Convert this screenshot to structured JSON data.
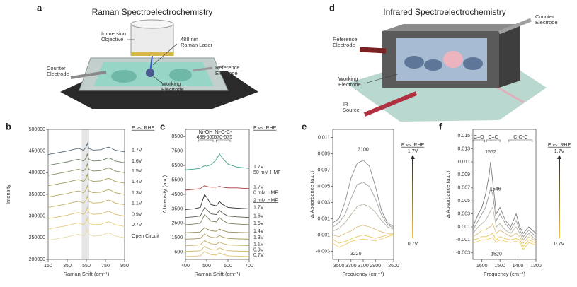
{
  "diagrams": [
    {
      "panel": "a",
      "title": "Raman Spectroelectrochemistry",
      "labels": [
        [
          "Immersion",
          "Objective"
        ],
        [
          "488 nm",
          "Raman Laser"
        ],
        [
          "Counter",
          "Electrode"
        ],
        [
          "Reference",
          "Electrode"
        ],
        [
          "Working",
          "Electrode"
        ]
      ]
    },
    {
      "panel": "d",
      "title": "Infrared Spectroelectrochemistry",
      "labels": [
        [
          "Reference",
          "Electrode"
        ],
        [
          "Counter",
          "Electrode"
        ],
        [
          "Working",
          "Electrode"
        ],
        [
          "IR",
          "Source"
        ]
      ]
    }
  ],
  "chart_data": [
    {
      "type": "line",
      "panel": "b",
      "xlabel": "Raman Shift (cm⁻¹)",
      "ylabel": "Intensity",
      "xlim": [
        150,
        950
      ],
      "ylim": [
        200000,
        500000
      ],
      "xticks": [
        150,
        350,
        550,
        750,
        950
      ],
      "yticks": [
        200000,
        250000,
        300000,
        350000,
        400000,
        450000,
        500000
      ],
      "highlight": [
        500,
        580
      ],
      "legend_title": "E vs. RHE",
      "x": [
        150,
        250,
        350,
        420,
        470,
        520,
        545,
        560,
        575,
        620,
        700,
        780,
        810,
        850,
        950
      ],
      "series": [
        {
          "name": "1.7V",
          "color": "#5a6a7a",
          "values": [
            442000,
            446000,
            450000,
            454000,
            456000,
            452000,
            458000,
            468000,
            456000,
            452000,
            453000,
            459000,
            457000,
            452000,
            448000
          ]
        },
        {
          "name": "1.6V",
          "color": "#6f7f6a",
          "values": [
            417000,
            421000,
            425000,
            429000,
            431000,
            427000,
            433000,
            443000,
            431000,
            427000,
            428000,
            434000,
            432000,
            427000,
            423000
          ]
        },
        {
          "name": "1.5V",
          "color": "#8a8f60",
          "values": [
            394000,
            398000,
            402000,
            406000,
            408000,
            404000,
            410000,
            420000,
            408000,
            404000,
            405000,
            411000,
            409000,
            404000,
            400000
          ]
        },
        {
          "name": "1.4V",
          "color": "#9f9a5a",
          "values": [
            370000,
            374000,
            378000,
            382000,
            384000,
            380000,
            386000,
            396000,
            384000,
            380000,
            381000,
            387000,
            385000,
            380000,
            376000
          ]
        },
        {
          "name": "1.3V",
          "color": "#b5a860",
          "values": [
            344000,
            348000,
            352000,
            356000,
            358000,
            354000,
            360000,
            370000,
            358000,
            354000,
            355000,
            361000,
            359000,
            354000,
            350000
          ]
        },
        {
          "name": "1.1V",
          "color": "#c8b46a",
          "values": [
            320000,
            324000,
            328000,
            332000,
            334000,
            330000,
            336000,
            346000,
            334000,
            330000,
            331000,
            337000,
            335000,
            330000,
            326000
          ]
        },
        {
          "name": "0.9V",
          "color": "#d8c070",
          "values": [
            294000,
            298000,
            302000,
            306000,
            308000,
            304000,
            310000,
            320000,
            308000,
            304000,
            305000,
            311000,
            309000,
            304000,
            300000
          ]
        },
        {
          "name": "0.7V",
          "color": "#e6cd80",
          "values": [
            270000,
            274000,
            278000,
            282000,
            284000,
            280000,
            286000,
            296000,
            284000,
            280000,
            281000,
            287000,
            285000,
            280000,
            276000
          ]
        },
        {
          "name": "Open Circuit",
          "color": "#eadcaa",
          "values": [
            244000,
            248000,
            252000,
            256000,
            258000,
            254000,
            260000,
            270000,
            258000,
            254000,
            255000,
            261000,
            259000,
            254000,
            250000
          ]
        }
      ]
    },
    {
      "type": "line",
      "panel": "c",
      "xlabel": "Raman Shift (cm⁻¹)",
      "ylabel": "Δ Intensity (a.u.)",
      "xlim": [
        400,
        700
      ],
      "ylim": [
        0,
        9000
      ],
      "xticks": [
        400,
        500,
        600,
        700
      ],
      "yticks": [
        500,
        1500,
        2500,
        3500,
        4500,
        5500,
        6500,
        7500,
        8500
      ],
      "legend_title": "E vs. RHE",
      "annotations": [
        {
          "text": [
            "Ni-OH",
            "488-500"
          ],
          "range": [
            460,
            530
          ]
        },
        {
          "text": [
            "Ni-O-C-",
            "570-575"
          ],
          "range": [
            545,
            610
          ]
        }
      ],
      "x": [
        400,
        440,
        470,
        490,
        500,
        520,
        545,
        560,
        575,
        600,
        640,
        700
      ],
      "series": [
        {
          "name": "1.7V",
          "condition": "50 mM HMF",
          "color": "#3fa58f",
          "values": [
            6200,
            6250,
            6300,
            6500,
            6450,
            6550,
            6900,
            7300,
            7000,
            6600,
            6400,
            6300
          ]
        },
        {
          "name": "1.7V",
          "condition": "0 mM HMF",
          "color": "#a03a3a",
          "values": [
            4800,
            4850,
            4900,
            5100,
            5050,
            5000,
            5000,
            5050,
            5000,
            4950,
            4950,
            4900
          ]
        },
        {
          "name": "1.7V",
          "group": "2 mM HMF",
          "color": "#2a2a2a",
          "values": [
            3450,
            3500,
            3600,
            4500,
            4300,
            3800,
            3700,
            4000,
            3800,
            3600,
            3550,
            3500
          ]
        },
        {
          "name": "1.6V",
          "color": "#5c5c50",
          "values": [
            2900,
            2950,
            3000,
            3600,
            3450,
            3150,
            3100,
            3400,
            3200,
            3000,
            2950,
            2900
          ]
        },
        {
          "name": "1.5V",
          "color": "#7c7a58",
          "values": [
            2400,
            2450,
            2500,
            3100,
            2950,
            2650,
            2600,
            2900,
            2700,
            2500,
            2450,
            2400
          ]
        },
        {
          "name": "1.4V",
          "color": "#968f58",
          "values": [
            1850,
            1875,
            1900,
            2200,
            2120,
            1980,
            1950,
            2100,
            2000,
            1900,
            1875,
            1850
          ]
        },
        {
          "name": "1.3V",
          "color": "#ab9f5e",
          "values": [
            1400,
            1425,
            1450,
            1750,
            1670,
            1530,
            1500,
            1650,
            1550,
            1450,
            1425,
            1400
          ]
        },
        {
          "name": "1.1V",
          "color": "#c0ad64",
          "values": [
            950,
            975,
            1000,
            1300,
            1220,
            1080,
            1050,
            1200,
            1100,
            1000,
            975,
            950
          ]
        },
        {
          "name": "0.9V",
          "color": "#d2b96a",
          "values": [
            550,
            575,
            600,
            900,
            820,
            680,
            650,
            800,
            700,
            600,
            575,
            550
          ]
        },
        {
          "name": "0.7V",
          "color": "#e0c274",
          "values": [
            200,
            225,
            250,
            550,
            470,
            330,
            300,
            450,
            350,
            250,
            225,
            200
          ]
        }
      ]
    },
    {
      "type": "line",
      "panel": "e",
      "xlabel": "Frequency (cm⁻¹)",
      "ylabel": "Δ Absorbance (a.u.)",
      "xlim": [
        3600,
        2600
      ],
      "ylim": [
        -0.004,
        0.012
      ],
      "xticks": [
        3500,
        3300,
        3100,
        2900,
        2600
      ],
      "yticks": [
        -0.003,
        -0.001,
        0.001,
        0.003,
        0.005,
        0.007,
        0.009,
        0.011
      ],
      "legend": {
        "title": "E vs. RHE",
        "high": "1.7V",
        "low": "0.7V",
        "colors": [
          "#f2c94c",
          "#2b2b2b"
        ]
      },
      "annotations": [
        {
          "text": "3100",
          "x": 3100,
          "y": 0.0095
        },
        {
          "text": "3220",
          "x": 3220,
          "y": -0.0033
        }
      ],
      "x": [
        3600,
        3500,
        3400,
        3300,
        3200,
        3100,
        3000,
        2900,
        2800,
        2700,
        2600
      ],
      "series": [
        {
          "color": "#8a8a8a",
          "values": [
            0.0005,
            0.001,
            0.003,
            0.006,
            0.0078,
            0.0082,
            0.0075,
            0.005,
            0.002,
            0.0005,
            0
          ]
        },
        {
          "color": "#a0a0a0",
          "values": [
            0,
            0.0005,
            0.0015,
            0.0035,
            0.0052,
            0.0055,
            0.005,
            0.0035,
            0.0015,
            0.0003,
            -0.0002
          ]
        },
        {
          "color": "#b8b0a0",
          "values": [
            -0.0005,
            -0.0002,
            0.0005,
            0.0015,
            0.0025,
            0.0028,
            0.0025,
            0.0018,
            0.0008,
            0,
            -0.0003
          ]
        },
        {
          "color": "#d8c080",
          "values": [
            -0.001,
            -0.0012,
            -0.0008,
            -0.0005,
            0,
            0.0002,
            0,
            -0.0003,
            -0.0006,
            -0.0008,
            -0.0008
          ]
        },
        {
          "color": "#e8c860",
          "values": [
            -0.0015,
            -0.002,
            -0.0018,
            -0.0015,
            -0.0012,
            -0.001,
            -0.0012,
            -0.0014,
            -0.0012,
            -0.001,
            -0.0009
          ]
        },
        {
          "color": "#f0d070",
          "values": [
            -0.002,
            -0.0025,
            -0.0022,
            -0.0018,
            -0.0016,
            -0.0015,
            -0.0016,
            -0.0017,
            -0.0015,
            -0.0012,
            -0.001
          ]
        }
      ]
    },
    {
      "type": "line",
      "panel": "f",
      "xlabel": "Frequency (cm⁻¹)",
      "ylabel": "Δ Absorbance (a.u.)",
      "xlim": [
        1650,
        1300
      ],
      "ylim": [
        -0.004,
        0.016
      ],
      "xticks": [
        1600,
        1500,
        1400,
        1300
      ],
      "yticks": [
        -0.003,
        -0.001,
        0.001,
        0.003,
        0.005,
        0.007,
        0.009,
        0.011,
        0.013,
        0.015
      ],
      "legend": {
        "title": "E vs. RHE",
        "high": "1.7V",
        "low": "0.7V",
        "colors": [
          "#f2c94c",
          "#2b2b2b"
        ]
      },
      "annotations": [
        {
          "text": "C=O",
          "range": [
            1650,
            1585
          ]
        },
        {
          "text": "C=C",
          "range": [
            1575,
            1500
          ]
        },
        {
          "text": "C-O-C",
          "range": [
            1450,
            1320
          ]
        },
        {
          "text": "1552",
          "x": 1552,
          "y": 0.0125
        },
        {
          "text": "1546",
          "x": 1525,
          "y": 0.0068
        },
        {
          "text": "1520",
          "x": 1520,
          "y": -0.0032
        }
      ],
      "x": [
        1650,
        1620,
        1600,
        1580,
        1560,
        1552,
        1540,
        1520,
        1500,
        1470,
        1440,
        1410,
        1390,
        1370,
        1340,
        1300
      ],
      "series": [
        {
          "color": "#7a7a7a",
          "values": [
            0.001,
            0.003,
            0.004,
            0.006,
            0.009,
            0.011,
            0.008,
            0.003,
            0.004,
            0.002,
            0.001,
            0.003,
            0.001,
            0,
            0.001,
            0
          ]
        },
        {
          "color": "#9a9a9a",
          "values": [
            0.0005,
            0.002,
            0.003,
            0.004,
            0.006,
            0.007,
            0.006,
            0.002,
            0.003,
            0.0015,
            0.0005,
            0.002,
            0.0005,
            -0.0005,
            0.0005,
            -0.0005
          ]
        },
        {
          "color": "#b8b0a0",
          "values": [
            0,
            0.001,
            0.0015,
            0.002,
            0.003,
            0.0035,
            0.004,
            0.001,
            0.0015,
            0.0005,
            0,
            0.001,
            0,
            -0.001,
            0,
            -0.001
          ]
        },
        {
          "color": "#d8c080",
          "values": [
            -0.0005,
            0,
            0.0005,
            0.0005,
            0.001,
            0.001,
            0.0015,
            0,
            0.0005,
            0,
            -0.0005,
            0,
            -0.0005,
            -0.0015,
            -0.0005,
            -0.0012
          ]
        },
        {
          "color": "#e8c860",
          "values": [
            -0.001,
            -0.0008,
            -0.0005,
            -0.0005,
            -0.0003,
            -0.0002,
            0,
            -0.001,
            -0.0005,
            -0.0008,
            -0.001,
            -0.0008,
            -0.001,
            -0.002,
            -0.001,
            -0.0015
          ]
        },
        {
          "color": "#f0d070",
          "values": [
            -0.0015,
            -0.0012,
            -0.001,
            -0.001,
            -0.0008,
            -0.0008,
            -0.0006,
            -0.0014,
            -0.001,
            -0.0012,
            -0.0014,
            -0.0012,
            -0.0014,
            -0.0025,
            -0.0014,
            -0.0018
          ]
        }
      ]
    }
  ]
}
